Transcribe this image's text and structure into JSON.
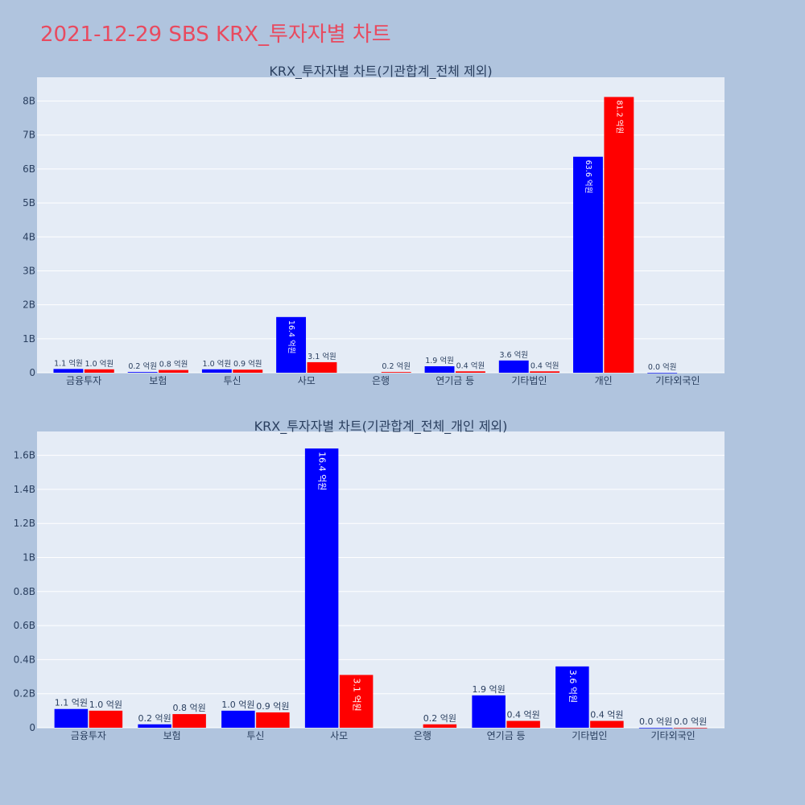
{
  "title": "2021-12-29 SBS KRX_투자자별 차트",
  "colors": {
    "buy": "#0000ff",
    "sell": "#ff0000",
    "plot_bg": "#e5ecf6",
    "page_bg": "#b0c4de",
    "title": "#e84a5f"
  },
  "chart_data": [
    {
      "type": "bar",
      "title": "KRX_투자자별 차트(기관합계_전체 제외)",
      "categories": [
        "금융투자",
        "보험",
        "투신",
        "사모",
        "은행",
        "연기금 등",
        "기타법인",
        "개인",
        "기타외국인"
      ],
      "series": [
        {
          "values": [
            0.11,
            0.02,
            0.1,
            1.64,
            null,
            0.19,
            0.36,
            6.36,
            0.0
          ],
          "labels": [
            "1.1 억원",
            "0.2 억원",
            "1.0 억원",
            "16.4 억원",
            "",
            "1.9 억원",
            "3.6 억원",
            "63.6 억원",
            "0.0 억원"
          ]
        },
        {
          "values": [
            0.1,
            0.08,
            0.09,
            0.31,
            0.02,
            0.04,
            0.04,
            8.12,
            null
          ],
          "labels": [
            "1.0 억원",
            "0.8 억원",
            "0.9 억원",
            "3.1 억원",
            "0.2 억원",
            "0.4 억원",
            "0.4 억원",
            "81.2 억원",
            ""
          ]
        }
      ],
      "unit": "B",
      "ylim": [
        0,
        8.7
      ],
      "yticks": [
        0,
        1,
        2,
        3,
        4,
        5,
        6,
        7,
        8
      ],
      "ytick_labels": [
        "0",
        "1B",
        "2B",
        "3B",
        "4B",
        "5B",
        "6B",
        "7B",
        "8B"
      ],
      "grid": true,
      "legend": "none"
    },
    {
      "type": "bar",
      "title": "KRX_투자자별 차트(기관합계_전체_개인 제외)",
      "categories": [
        "금융투자",
        "보험",
        "투신",
        "사모",
        "은행",
        "연기금 등",
        "기타법인",
        "기타외국인"
      ],
      "series": [
        {
          "values": [
            0.11,
            0.02,
            0.1,
            1.64,
            null,
            0.19,
            0.36,
            0.0
          ],
          "labels": [
            "1.1 억원",
            "0.2 억원",
            "1.0 억원",
            "16.4 억원",
            "",
            "1.9 억원",
            "3.6 억원",
            "0.0 억원"
          ]
        },
        {
          "values": [
            0.1,
            0.08,
            0.09,
            0.31,
            0.02,
            0.04,
            0.04,
            0.0
          ],
          "labels": [
            "1.0 억원",
            "0.8 억원",
            "0.9 억원",
            "3.1 억원",
            "0.2 억원",
            "0.4 억원",
            "0.4 억원",
            "0.0 억원"
          ]
        }
      ],
      "unit": "B",
      "ylim": [
        0,
        1.74
      ],
      "yticks": [
        0,
        0.2,
        0.4,
        0.6,
        0.8,
        1.0,
        1.2,
        1.4,
        1.6
      ],
      "ytick_labels": [
        "0",
        "0.2B",
        "0.4B",
        "0.6B",
        "0.8B",
        "1B",
        "1.2B",
        "1.4B",
        "1.6B"
      ],
      "grid": true,
      "legend": "none"
    }
  ]
}
